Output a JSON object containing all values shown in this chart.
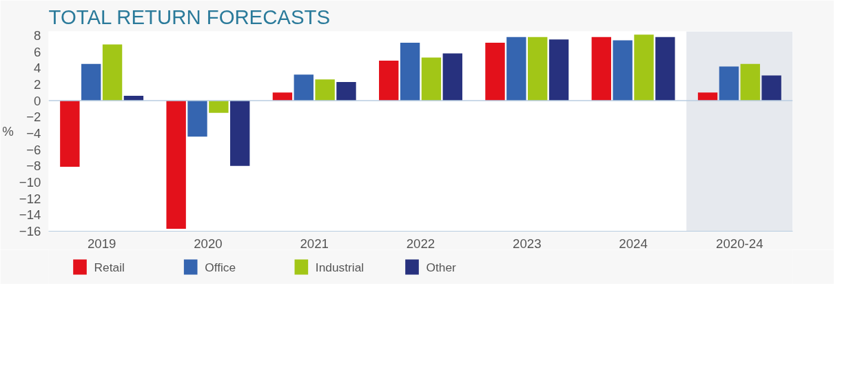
{
  "chart_data": {
    "type": "bar",
    "title": "TOTAL RETURN FORECASTS",
    "ylabel": "%",
    "categories": [
      "2019",
      "2020",
      "2021",
      "2022",
      "2023",
      "2024",
      "2020-24"
    ],
    "series": [
      {
        "name": "Retail",
        "color": "#e3111b",
        "values": [
          -8.1,
          -15.7,
          1.0,
          4.9,
          7.1,
          7.8,
          1.0
        ]
      },
      {
        "name": "Office",
        "color": "#3565b0",
        "values": [
          4.5,
          -4.4,
          3.2,
          7.1,
          7.8,
          7.4,
          4.2
        ]
      },
      {
        "name": "Industrial",
        "color": "#a2c617",
        "values": [
          6.9,
          -1.5,
          2.6,
          5.3,
          7.8,
          8.1,
          4.5
        ]
      },
      {
        "name": "Other",
        "color": "#27317e",
        "values": [
          0.6,
          -8.0,
          2.3,
          5.8,
          7.5,
          7.8,
          3.1
        ]
      }
    ],
    "ylim": [
      -16,
      8.5
    ],
    "yticks": [
      -16,
      -14,
      -12,
      -10,
      -8,
      -6,
      -4,
      -2,
      0,
      2,
      4,
      6,
      8
    ],
    "bands": [
      {
        "axis": "x",
        "from": "2020-24",
        "to": "2020-24",
        "color": "#e6e9ee"
      }
    ],
    "ref_lines": [
      {
        "axis": "y",
        "value": 0,
        "color": "#b8cde0"
      }
    ],
    "grid": false,
    "legend": "bottom"
  }
}
